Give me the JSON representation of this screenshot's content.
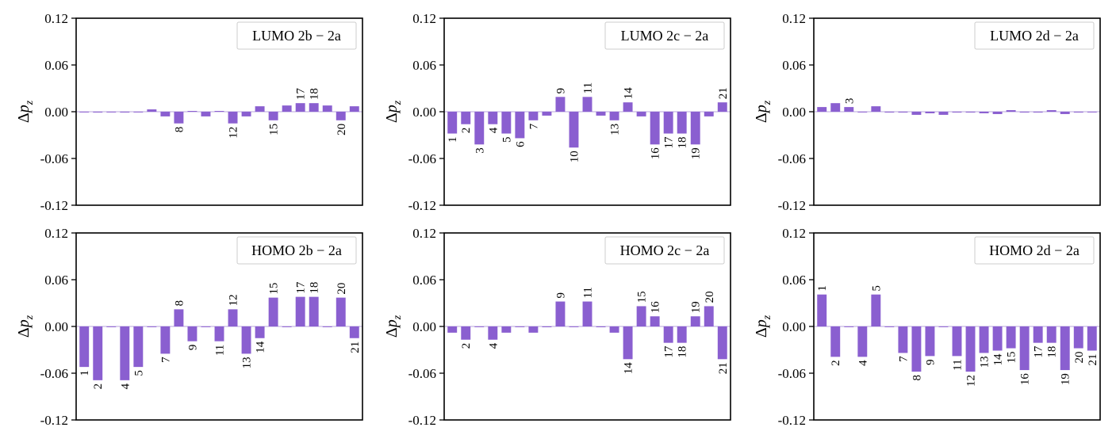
{
  "chart_data": [
    {
      "type": "bar",
      "title": "LUMO 2b − 2a",
      "ylabel": "Δp",
      "ylabel_sub": "z",
      "ylim": [
        -0.12,
        0.12
      ],
      "yticks": [
        "0.12",
        "0.06",
        "0.00",
        "-0.06",
        "-0.12"
      ],
      "x": [
        1,
        2,
        3,
        4,
        5,
        6,
        7,
        8,
        9,
        10,
        11,
        12,
        13,
        14,
        15,
        16,
        17,
        18,
        19,
        20,
        21
      ],
      "values": [
        0.0,
        -0.001,
        0.0,
        -0.001,
        0.0,
        0.003,
        -0.006,
        -0.015,
        0.001,
        -0.006,
        0.001,
        -0.015,
        -0.006,
        0.007,
        -0.011,
        0.008,
        0.011,
        0.011,
        0.008,
        -0.011,
        0.007
      ],
      "labeled": [
        "8",
        "12",
        "15",
        "17",
        "18",
        "20"
      ]
    },
    {
      "type": "bar",
      "title": "LUMO 2c − 2a",
      "ylabel": "Δp",
      "ylabel_sub": "z",
      "ylim": [
        -0.12,
        0.12
      ],
      "yticks": [
        "0.12",
        "0.06",
        "0.00",
        "-0.06",
        "-0.12"
      ],
      "x": [
        1,
        2,
        3,
        4,
        5,
        6,
        7,
        8,
        9,
        10,
        11,
        12,
        13,
        14,
        15,
        16,
        17,
        18,
        19,
        20,
        21
      ],
      "values": [
        -0.028,
        -0.016,
        -0.042,
        -0.016,
        -0.028,
        -0.034,
        -0.011,
        -0.005,
        0.019,
        -0.046,
        0.019,
        -0.005,
        -0.011,
        0.012,
        -0.006,
        -0.042,
        -0.028,
        -0.028,
        -0.042,
        -0.006,
        0.012
      ],
      "labeled": [
        "1",
        "2",
        "3",
        "4",
        "5",
        "6",
        "7",
        "9",
        "10",
        "11",
        "13",
        "14",
        "16",
        "17",
        "18",
        "19",
        "21"
      ]
    },
    {
      "type": "bar",
      "title": "LUMO 2d − 2a",
      "ylabel": "Δp",
      "ylabel_sub": "z",
      "ylim": [
        -0.12,
        0.12
      ],
      "yticks": [
        "0.12",
        "0.06",
        "0.00",
        "-0.06",
        "-0.12"
      ],
      "x": [
        1,
        2,
        3,
        4,
        5,
        6,
        7,
        8,
        9,
        10,
        11,
        12,
        13,
        14,
        15,
        16,
        17,
        18,
        19,
        20,
        21
      ],
      "values": [
        0.006,
        0.011,
        0.006,
        0.0,
        0.007,
        -0.001,
        -0.001,
        -0.004,
        -0.002,
        -0.004,
        -0.001,
        -0.001,
        -0.002,
        -0.003,
        0.002,
        -0.001,
        -0.001,
        0.002,
        -0.003,
        -0.001,
        0.0
      ],
      "labeled": [
        "3"
      ]
    },
    {
      "type": "bar",
      "title": "HOMO 2b − 2a",
      "ylabel": "Δp",
      "ylabel_sub": "z",
      "ylim": [
        -0.12,
        0.12
      ],
      "yticks": [
        "0.12",
        "0.06",
        "0.00",
        "-0.06",
        "-0.12"
      ],
      "x": [
        1,
        2,
        3,
        4,
        5,
        6,
        7,
        8,
        9,
        10,
        11,
        12,
        13,
        14,
        15,
        16,
        17,
        18,
        19,
        20,
        21
      ],
      "values": [
        -0.052,
        -0.069,
        0.0,
        -0.069,
        -0.052,
        0.0,
        -0.035,
        0.022,
        -0.019,
        0.0,
        -0.019,
        0.022,
        -0.035,
        -0.015,
        0.037,
        0.0,
        0.038,
        0.038,
        0.0,
        0.037,
        -0.015
      ],
      "labeled": [
        "1",
        "2",
        "4",
        "5",
        "7",
        "8",
        "9",
        "11",
        "12",
        "13",
        "14",
        "15",
        "17",
        "18",
        "20",
        "21"
      ]
    },
    {
      "type": "bar",
      "title": "HOMO 2c − 2a",
      "ylabel": "Δp",
      "ylabel_sub": "z",
      "ylim": [
        -0.12,
        0.12
      ],
      "yticks": [
        "0.12",
        "0.06",
        "0.00",
        "-0.06",
        "-0.12"
      ],
      "x": [
        1,
        2,
        3,
        4,
        5,
        6,
        7,
        8,
        9,
        10,
        11,
        12,
        13,
        14,
        15,
        16,
        17,
        18,
        19,
        20,
        21
      ],
      "values": [
        -0.008,
        -0.017,
        0.0,
        -0.017,
        -0.008,
        0.0,
        -0.008,
        -0.001,
        0.032,
        0.0,
        0.032,
        -0.001,
        -0.008,
        -0.042,
        0.026,
        0.013,
        -0.021,
        -0.021,
        0.013,
        0.026,
        -0.042
      ],
      "labeled": [
        "2",
        "4",
        "9",
        "11",
        "14",
        "15",
        "16",
        "17",
        "18",
        "19",
        "20",
        "21"
      ]
    },
    {
      "type": "bar",
      "title": "HOMO 2d − 2a",
      "ylabel": "Δp",
      "ylabel_sub": "z",
      "ylim": [
        -0.12,
        0.12
      ],
      "yticks": [
        "0.12",
        "0.06",
        "0.00",
        "-0.06",
        "-0.12"
      ],
      "x": [
        1,
        2,
        3,
        4,
        5,
        6,
        7,
        8,
        9,
        10,
        11,
        12,
        13,
        14,
        15,
        16,
        17,
        18,
        19,
        20,
        21
      ],
      "values": [
        0.041,
        -0.039,
        0.0,
        -0.039,
        0.041,
        0.0,
        -0.034,
        -0.058,
        -0.038,
        0.0,
        -0.038,
        -0.058,
        -0.034,
        -0.031,
        -0.028,
        -0.056,
        -0.021,
        -0.021,
        -0.056,
        -0.028,
        -0.031
      ],
      "labeled": [
        "1",
        "2",
        "4",
        "5",
        "7",
        "8",
        "9",
        "11",
        "12",
        "13",
        "14",
        "15",
        "16",
        "17",
        "18",
        "19",
        "20",
        "21"
      ]
    }
  ],
  "colors": {
    "bar": "#8a5fd0",
    "axis": "#000000"
  }
}
